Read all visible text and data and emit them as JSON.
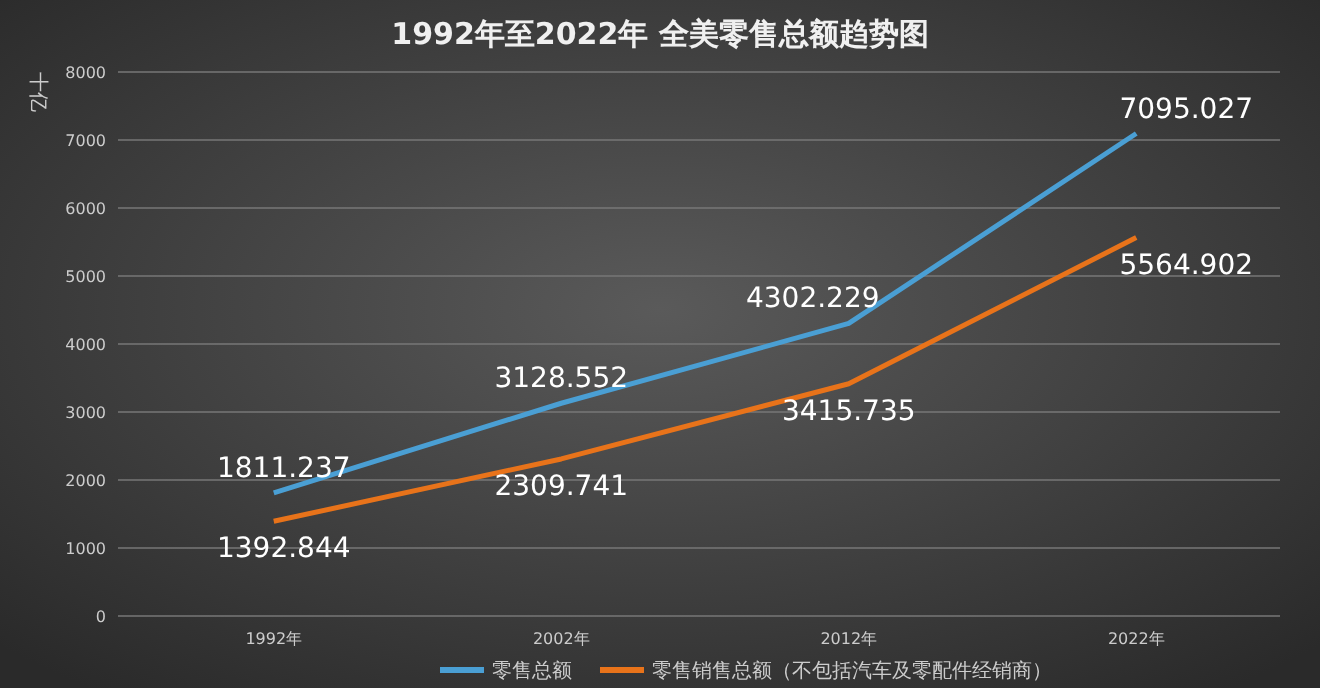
{
  "chart_data": {
    "type": "line",
    "title": "1992年至2022年 全美零售总额趋势图",
    "ylabel": "十亿",
    "categories": [
      "1992年",
      "2002年",
      "2012年",
      "2022年"
    ],
    "series": [
      {
        "name": "零售总额",
        "color": "#4a9fd4",
        "values": [
          1811.237,
          3128.552,
          4302.229,
          7095.027
        ]
      },
      {
        "name": "零售销售总额（不包括汽车及零配件经销商）",
        "color": "#e8731a",
        "values": [
          1392.844,
          2309.741,
          3415.735,
          5564.902
        ]
      }
    ],
    "ylim": [
      0,
      8000
    ],
    "yticks": [
      0,
      1000,
      2000,
      3000,
      4000,
      5000,
      6000,
      7000,
      8000
    ],
    "grid": "y",
    "legend": "bottom",
    "data_labels": true,
    "marker": "none",
    "line_style": "solid"
  }
}
